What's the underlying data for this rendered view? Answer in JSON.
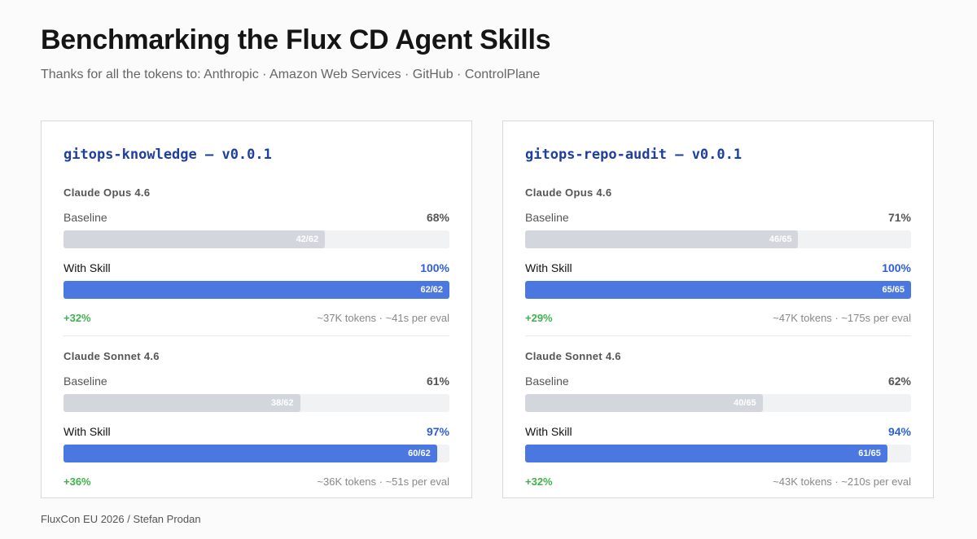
{
  "header": {
    "title": "Benchmarking the Flux CD Agent Skills",
    "subtitle": "Thanks for all the tokens to: Anthropic · Amazon Web Services · GitHub · ControlPlane"
  },
  "footer": {
    "text": "FluxCon EU 2026 / Stefan Prodan"
  },
  "colors": {
    "baseline_bar": "#d3d6dc",
    "skill_bar": "#4a78e0",
    "title_accent": "#1f3f9e",
    "delta_green": "#3fb24d"
  },
  "chart_data": [
    {
      "type": "bar",
      "title": "gitops-knowledge – v0.0.1",
      "series_labels": {
        "baseline": "Baseline",
        "skill": "With Skill"
      },
      "models": [
        {
          "name": "Claude Opus 4.6",
          "baseline": {
            "label": "Baseline",
            "pct": "68%",
            "passed": 42,
            "total": 62,
            "bar_text": "42/62"
          },
          "skill": {
            "label": "With Skill",
            "pct": "100%",
            "passed": 62,
            "total": 62,
            "bar_text": "62/62"
          },
          "delta": "+32%",
          "stats": "~37K tokens · ~41s per eval"
        },
        {
          "name": "Claude Sonnet 4.6",
          "baseline": {
            "label": "Baseline",
            "pct": "61%",
            "passed": 38,
            "total": 62,
            "bar_text": "38/62"
          },
          "skill": {
            "label": "With Skill",
            "pct": "97%",
            "passed": 60,
            "total": 62,
            "bar_text": "60/62"
          },
          "delta": "+36%",
          "stats": "~36K tokens · ~51s per eval"
        }
      ]
    },
    {
      "type": "bar",
      "title": "gitops-repo-audit – v0.0.1",
      "series_labels": {
        "baseline": "Baseline",
        "skill": "With Skill"
      },
      "models": [
        {
          "name": "Claude Opus 4.6",
          "baseline": {
            "label": "Baseline",
            "pct": "71%",
            "passed": 46,
            "total": 65,
            "bar_text": "46/65"
          },
          "skill": {
            "label": "With Skill",
            "pct": "100%",
            "passed": 65,
            "total": 65,
            "bar_text": "65/65"
          },
          "delta": "+29%",
          "stats": "~47K tokens · ~175s per eval"
        },
        {
          "name": "Claude Sonnet 4.6",
          "baseline": {
            "label": "Baseline",
            "pct": "62%",
            "passed": 40,
            "total": 65,
            "bar_text": "40/65"
          },
          "skill": {
            "label": "With Skill",
            "pct": "94%",
            "passed": 61,
            "total": 65,
            "bar_text": "61/65"
          },
          "delta": "+32%",
          "stats": "~43K tokens · ~210s per eval"
        }
      ]
    }
  ]
}
